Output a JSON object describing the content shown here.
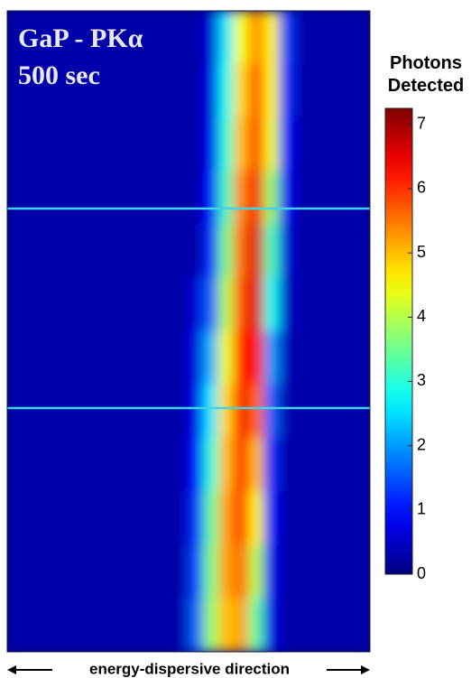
{
  "chart_data": {
    "type": "heatmap",
    "title": "GaP - PKα",
    "subtitle": "500 sec",
    "colorbar_label": "Photons Detected",
    "xlabel": "energy-dispersive direction",
    "colormap": "jet",
    "zlim": [
      0,
      7.25
    ],
    "zticks": [
      0,
      1,
      2,
      3,
      4,
      5,
      6,
      7
    ],
    "z": [
      [
        0.3,
        0.3,
        0.3,
        0.3,
        0.3,
        0.3,
        0.3,
        0.3,
        0.3,
        0.3,
        0.3,
        0.3,
        0.3,
        0.6,
        2.6,
        4.5,
        5.4,
        4.6,
        1.3,
        0.3,
        0.3,
        0.3,
        0.3,
        0.3
      ],
      [
        0.3,
        0.3,
        0.3,
        0.3,
        0.3,
        0.3,
        0.3,
        0.3,
        0.3,
        0.3,
        0.3,
        0.3,
        0.3,
        0.7,
        2.8,
        4.8,
        5.8,
        4.6,
        1.2,
        0.3,
        0.3,
        0.3,
        0.3,
        0.3
      ],
      [
        0.3,
        0.3,
        0.3,
        0.3,
        0.3,
        0.3,
        0.3,
        0.3,
        0.3,
        0.3,
        0.3,
        0.3,
        0.3,
        0.8,
        3.0,
        5.0,
        6.0,
        4.4,
        1.0,
        0.3,
        0.3,
        0.3,
        0.3,
        0.3
      ],
      [
        0.3,
        0.3,
        0.3,
        0.3,
        0.3,
        0.3,
        0.3,
        0.3,
        0.3,
        0.3,
        0.3,
        0.3,
        0.3,
        1.0,
        3.2,
        5.4,
        6.4,
        3.8,
        0.8,
        0.3,
        0.3,
        0.3,
        0.3,
        0.3
      ],
      [
        0.3,
        0.3,
        0.3,
        0.3,
        0.3,
        0.3,
        0.3,
        0.3,
        0.3,
        0.3,
        0.3,
        0.3,
        0.3,
        1.2,
        3.6,
        5.6,
        6.6,
        3.2,
        0.6,
        0.3,
        0.3,
        0.3,
        0.3,
        0.3
      ],
      [
        0.3,
        0.3,
        0.3,
        0.3,
        0.3,
        0.3,
        0.3,
        0.3,
        0.3,
        0.3,
        0.3,
        0.3,
        0.6,
        1.6,
        4.0,
        5.8,
        6.6,
        2.8,
        0.5,
        0.3,
        0.3,
        0.3,
        0.3,
        0.3
      ],
      [
        0.3,
        0.3,
        0.3,
        0.3,
        0.3,
        0.3,
        0.3,
        0.3,
        0.3,
        0.3,
        0.3,
        0.3,
        0.7,
        2.2,
        4.4,
        6.2,
        6.2,
        2.0,
        0.4,
        0.3,
        0.3,
        0.3,
        0.3,
        0.3
      ],
      [
        0.3,
        0.3,
        0.3,
        0.3,
        0.3,
        0.3,
        0.3,
        0.3,
        0.3,
        0.3,
        0.3,
        0.3,
        0.8,
        2.6,
        4.8,
        6.4,
        5.6,
        1.6,
        0.3,
        0.3,
        0.3,
        0.3,
        0.3,
        0.3
      ],
      [
        0.3,
        0.3,
        0.3,
        0.3,
        0.3,
        0.3,
        0.3,
        0.3,
        0.3,
        0.3,
        0.3,
        0.3,
        1.0,
        3.0,
        5.0,
        6.2,
        5.0,
        1.2,
        0.3,
        0.3,
        0.3,
        0.3,
        0.3,
        0.3
      ],
      [
        0.3,
        0.3,
        0.3,
        0.3,
        0.3,
        0.3,
        0.3,
        0.3,
        0.3,
        0.3,
        0.3,
        0.3,
        1.2,
        3.4,
        5.2,
        6.0,
        4.6,
        1.0,
        0.3,
        0.3,
        0.3,
        0.3,
        0.3,
        0.3
      ],
      [
        0.3,
        0.3,
        0.3,
        0.3,
        0.3,
        0.3,
        0.3,
        0.3,
        0.3,
        0.3,
        0.3,
        0.3,
        1.4,
        3.6,
        5.2,
        5.6,
        4.0,
        0.8,
        0.3,
        0.3,
        0.3,
        0.3,
        0.3,
        0.3
      ],
      [
        0.3,
        0.3,
        0.3,
        0.3,
        0.3,
        0.3,
        0.3,
        0.3,
        0.3,
        0.3,
        0.3,
        0.3,
        1.6,
        3.8,
        5.0,
        5.2,
        3.4,
        0.7,
        0.3,
        0.3,
        0.3,
        0.3,
        0.3,
        0.3
      ]
    ]
  }
}
